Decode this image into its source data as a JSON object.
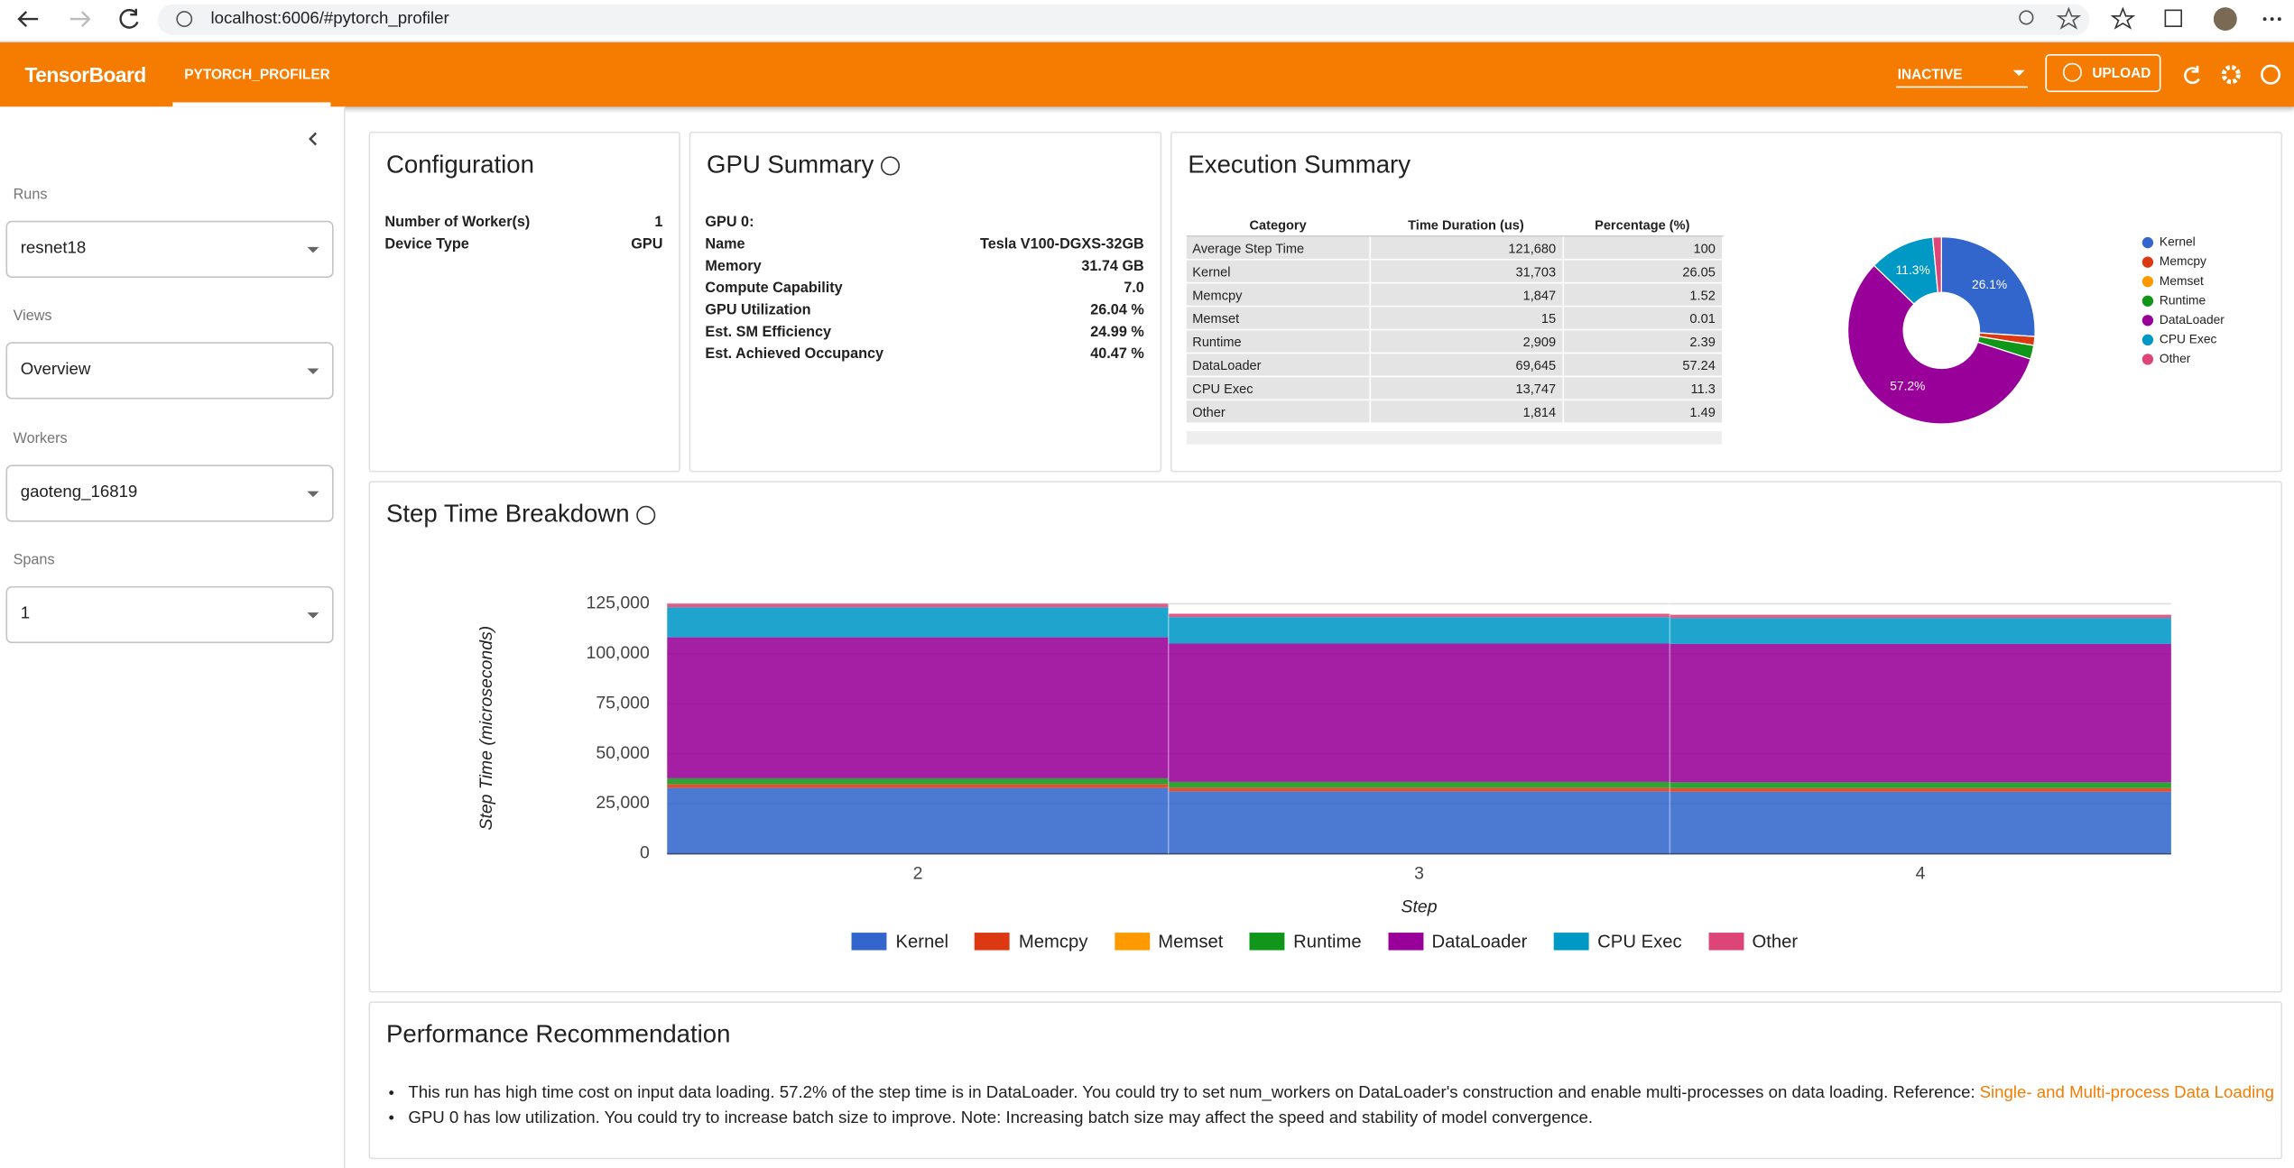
{
  "browser": {
    "url": "localhost:6006/#pytorch_profiler"
  },
  "header": {
    "brand": "TensorBoard",
    "tab": "PYTORCH_PROFILER",
    "status": "INACTIVE",
    "upload": "UPLOAD"
  },
  "sidebar": {
    "fields": [
      {
        "label": "Runs",
        "value": "resnet18"
      },
      {
        "label": "Views",
        "value": "Overview"
      },
      {
        "label": "Workers",
        "value": "gaoteng_16819"
      },
      {
        "label": "Spans",
        "value": "1"
      }
    ]
  },
  "configuration": {
    "title": "Configuration",
    "rows": [
      [
        "Number of Worker(s)",
        "1"
      ],
      [
        "Device Type",
        "GPU"
      ]
    ]
  },
  "gpu_summary": {
    "title": "GPU Summary",
    "device": "GPU 0:",
    "rows": [
      [
        "Name",
        "Tesla V100-DGXS-32GB"
      ],
      [
        "Memory",
        "31.74 GB"
      ],
      [
        "Compute Capability",
        "7.0"
      ],
      [
        "GPU Utilization",
        "26.04 %"
      ],
      [
        "Est. SM Efficiency",
        "24.99 %"
      ],
      [
        "Est. Achieved Occupancy",
        "40.47 %"
      ]
    ]
  },
  "execution_summary": {
    "title": "Execution Summary",
    "table": {
      "columns": [
        "Category",
        "Time Duration (us)",
        "Percentage (%)"
      ],
      "rows": [
        [
          "Average Step Time",
          "121,680",
          "100"
        ],
        [
          "Kernel",
          "31,703",
          "26.05"
        ],
        [
          "Memcpy",
          "1,847",
          "1.52"
        ],
        [
          "Memset",
          "15",
          "0.01"
        ],
        [
          "Runtime",
          "2,909",
          "2.39"
        ],
        [
          "DataLoader",
          "69,645",
          "57.24"
        ],
        [
          "CPU Exec",
          "13,747",
          "11.3"
        ],
        [
          "Other",
          "1,814",
          "1.49"
        ]
      ]
    }
  },
  "chart_data": [
    {
      "type": "pie",
      "categories": [
        "Kernel",
        "Memcpy",
        "Memset",
        "Runtime",
        "DataLoader",
        "CPU Exec",
        "Other"
      ],
      "values": [
        26.05,
        1.52,
        0.01,
        2.39,
        57.24,
        11.3,
        1.49
      ],
      "value_labels": [
        "26.1%",
        null,
        null,
        null,
        "57.2%",
        "11.3%",
        null
      ],
      "colors": [
        "#3366cc",
        "#dc3912",
        "#ff9900",
        "#109618",
        "#990099",
        "#0099c6",
        "#dd4477"
      ],
      "legend": "right"
    },
    {
      "type": "area",
      "stacked": true,
      "title": "Step Time Breakdown",
      "x_label": "Step",
      "y_label": "Step Time (microseconds)",
      "categories": [
        "2",
        "3",
        "4"
      ],
      "series": [
        {
          "name": "Kernel",
          "color": "#3366cc",
          "values": [
            32900,
            31200,
            31000
          ]
        },
        {
          "name": "Memcpy",
          "color": "#dc3912",
          "values": [
            1900,
            1800,
            1800
          ]
        },
        {
          "name": "Memset",
          "color": "#ff9900",
          "values": [
            15,
            15,
            15
          ]
        },
        {
          "name": "Runtime",
          "color": "#109618",
          "values": [
            2900,
            2900,
            2900
          ]
        },
        {
          "name": "DataLoader",
          "color": "#990099",
          "values": [
            70500,
            69200,
            69200
          ]
        },
        {
          "name": "CPU Exec",
          "color": "#0099c6",
          "values": [
            15000,
            13200,
            13000
          ]
        },
        {
          "name": "Other",
          "color": "#dd4477",
          "values": [
            1800,
            1700,
            1600
          ]
        }
      ],
      "ylim": [
        0,
        125000
      ],
      "yticks": [
        0,
        {
          "value": 25000,
          "label": "25,000"
        },
        {
          "value": 50000,
          "label": "50,000"
        },
        {
          "value": 75000,
          "label": "75,000"
        },
        {
          "value": 100000,
          "label": "100,000"
        },
        {
          "value": 125000,
          "label": "125,000"
        }
      ],
      "grid": true,
      "legend": "bottom"
    }
  ],
  "recommendation": {
    "title": "Performance Recommendation",
    "items": [
      {
        "text": "This run has high time cost on input data loading. 57.2% of the step time is in DataLoader. You could try to set num_workers on DataLoader's construction and enable multi-processes on data loading. Reference:",
        "link": "Single- and Multi-process Data Loading"
      },
      {
        "text": "GPU 0 has low utilization. You could try to increase batch size to improve. Note: Increasing batch size may affect the speed and stability of model convergence."
      }
    ]
  }
}
